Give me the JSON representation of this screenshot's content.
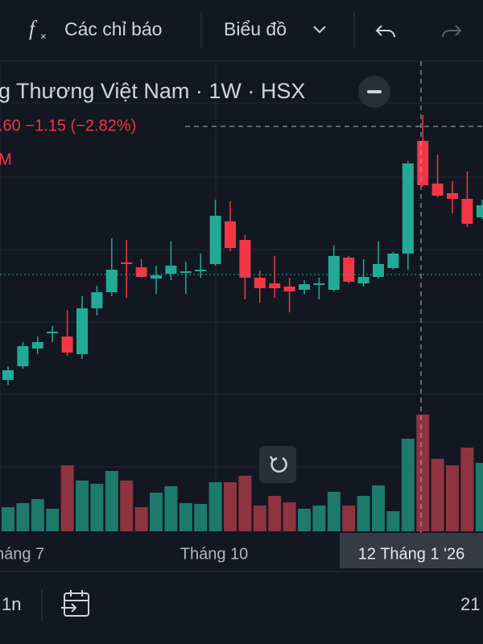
{
  "toolbar": {
    "fx": "f",
    "indicators": "Các chỉ báo",
    "chart": "Biểu đồ"
  },
  "legend": {
    "title": "g Thương Việt Nam · 1W · HSX",
    "price": ".60 −1.15 (−2.82%)",
    "volume": "M"
  },
  "chart_data": {
    "type": "candlestick",
    "open": [
      24.25,
      25.1,
      26.2,
      27.15,
      26.95,
      25.85,
      28.7,
      29.7,
      31.55,
      31.25,
      30.55,
      30.85,
      30.9,
      31.0,
      31.45,
      34.1,
      32.95,
      30.6,
      30.25,
      30.05,
      29.85,
      30.15,
      29.85,
      31.85,
      30.25,
      30.65,
      31.2,
      32.1,
      39.1,
      36.45,
      35.85,
      35.5,
      34.35
    ],
    "high": [
      25.1,
      26.6,
      26.95,
      27.6,
      28.6,
      29.45,
      30.1,
      33.05,
      32.95,
      31.75,
      31.35,
      32.85,
      31.6,
      32.1,
      35.45,
      35.35,
      33.25,
      31.05,
      31.95,
      30.6,
      30.45,
      30.6,
      32.6,
      31.95,
      31.75,
      32.85,
      32.2,
      37.85,
      40.7,
      38.25,
      36.6,
      37.2,
      35.45
    ],
    "low": [
      23.95,
      24.95,
      25.85,
      26.6,
      25.75,
      25.55,
      28.25,
      29.45,
      29.35,
      30.6,
      29.6,
      30.45,
      29.6,
      30.6,
      31.35,
      32.25,
      29.25,
      29.05,
      29.35,
      28.45,
      29.55,
      29.25,
      29.75,
      30.25,
      30.05,
      30.55,
      31.1,
      31.1,
      36.25,
      35.6,
      34.6,
      33.75,
      34.25
    ],
    "close": [
      24.85,
      26.35,
      26.6,
      27.25,
      25.95,
      28.7,
      29.7,
      31.1,
      31.45,
      30.65,
      30.75,
      31.35,
      31.0,
      31.1,
      34.45,
      32.45,
      30.6,
      29.95,
      29.95,
      29.75,
      30.2,
      30.25,
      31.95,
      30.35,
      30.65,
      31.45,
      32.1,
      37.7,
      36.35,
      35.7,
      35.5,
      33.95,
      35.1
    ],
    "volume": [
      30,
      35,
      40,
      28,
      82,
      63,
      59,
      75,
      63,
      30,
      48,
      56,
      35,
      34,
      61,
      61,
      69,
      32,
      44,
      36,
      28,
      32,
      49,
      32,
      44,
      57,
      25,
      115,
      145,
      90,
      82,
      104,
      85
    ],
    "ylim": [
      23.35,
      42.85
    ],
    "volume_ylim": [
      0,
      150
    ],
    "up_color": "#22ab94",
    "down_color": "#f23645",
    "up_volume_color": "#1d7a6d",
    "down_volume_color": "#8e3440",
    "xlabels": [
      "háng 7",
      "Tháng 10",
      "12 Tháng 1 '26"
    ]
  },
  "bottom_bar": {
    "range": "1n",
    "right": "21"
  }
}
